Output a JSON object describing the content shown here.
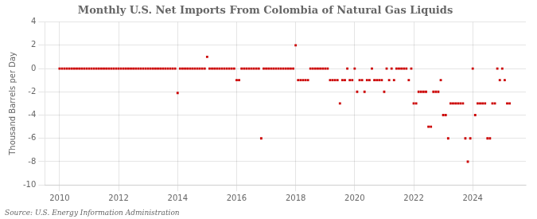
{
  "chart_data": {
    "type": "scatter",
    "title": "Monthly U.S. Net Imports From Colombia of Natural Gas Liquids",
    "ylabel": "Thousand Barrels per Day",
    "annotations": [
      "Source: U.S. Energy Information Administration"
    ],
    "xlim": [
      2009.5,
      2025.8
    ],
    "xticks": [
      2010,
      2012,
      2014,
      2016,
      2018,
      2020,
      2022,
      2024
    ],
    "ylim": [
      -10,
      4
    ],
    "yticks": [
      -10,
      -8,
      -6,
      -4,
      -2,
      0,
      2,
      4
    ],
    "grid": true,
    "color": "#cc0000",
    "marker": "square",
    "x": [
      2010.0,
      2010.083,
      2010.167,
      2010.25,
      2010.333,
      2010.417,
      2010.5,
      2010.583,
      2010.667,
      2010.75,
      2010.833,
      2010.917,
      2011.0,
      2011.083,
      2011.167,
      2011.25,
      2011.333,
      2011.417,
      2011.5,
      2011.583,
      2011.667,
      2011.75,
      2011.833,
      2011.917,
      2012.0,
      2012.083,
      2012.167,
      2012.25,
      2012.333,
      2012.417,
      2012.5,
      2012.583,
      2012.667,
      2012.75,
      2012.833,
      2012.917,
      2013.0,
      2013.083,
      2013.167,
      2013.25,
      2013.333,
      2013.417,
      2013.5,
      2013.583,
      2013.667,
      2013.75,
      2013.833,
      2013.917,
      2014.0,
      2014.083,
      2014.167,
      2014.25,
      2014.333,
      2014.417,
      2014.5,
      2014.583,
      2014.667,
      2014.75,
      2014.833,
      2014.917,
      2015.0,
      2015.083,
      2015.167,
      2015.25,
      2015.333,
      2015.417,
      2015.5,
      2015.583,
      2015.667,
      2015.75,
      2015.833,
      2015.917,
      2016.0,
      2016.083,
      2016.167,
      2016.25,
      2016.333,
      2016.417,
      2016.5,
      2016.583,
      2016.667,
      2016.75,
      2016.833,
      2016.917,
      2017.0,
      2017.083,
      2017.167,
      2017.25,
      2017.333,
      2017.417,
      2017.5,
      2017.583,
      2017.667,
      2017.75,
      2017.833,
      2017.917,
      2018.0,
      2018.083,
      2018.167,
      2018.25,
      2018.333,
      2018.417,
      2018.5,
      2018.583,
      2018.667,
      2018.75,
      2018.833,
      2018.917,
      2019.0,
      2019.083,
      2019.167,
      2019.25,
      2019.333,
      2019.417,
      2019.5,
      2019.583,
      2019.667,
      2019.75,
      2019.833,
      2019.917,
      2020.0,
      2020.083,
      2020.167,
      2020.25,
      2020.333,
      2020.417,
      2020.5,
      2020.583,
      2020.667,
      2020.75,
      2020.833,
      2020.917,
      2021.0,
      2021.083,
      2021.167,
      2021.25,
      2021.333,
      2021.417,
      2021.5,
      2021.583,
      2021.667,
      2021.75,
      2021.833,
      2021.917,
      2022.0,
      2022.083,
      2022.167,
      2022.25,
      2022.333,
      2022.417,
      2022.5,
      2022.583,
      2022.667,
      2022.75,
      2022.833,
      2022.917,
      2023.0,
      2023.083,
      2023.167,
      2023.25,
      2023.333,
      2023.417,
      2023.5,
      2023.583,
      2023.667,
      2023.75,
      2023.833,
      2023.917,
      2024.0,
      2024.083,
      2024.167,
      2024.25,
      2024.333,
      2024.417,
      2024.5,
      2024.583,
      2024.667,
      2024.75,
      2024.833,
      2024.917,
      2025.0,
      2025.083,
      2025.167,
      2025.25
    ],
    "values": [
      0,
      0,
      0,
      0,
      0,
      0,
      0,
      0,
      0,
      0,
      0,
      0,
      0,
      0,
      0,
      0,
      0,
      0,
      0,
      0,
      0,
      0,
      0,
      0,
      0,
      0,
      0,
      0,
      0,
      0,
      0,
      0,
      0,
      0,
      0,
      0,
      0,
      0,
      0,
      0,
      0,
      0,
      0,
      0,
      0,
      0,
      0,
      0,
      -2.1,
      0,
      0,
      0,
      0,
      0,
      0,
      0,
      0,
      0,
      0,
      0,
      1.0,
      0,
      0,
      0,
      0,
      0,
      0,
      0,
      0,
      0,
      0,
      0,
      -1.0,
      -1.0,
      0,
      0,
      0,
      0,
      0,
      0,
      0,
      0,
      -6.0,
      0,
      0,
      0,
      0,
      0,
      0,
      0,
      0,
      0,
      0,
      0,
      0,
      0,
      2.0,
      -1.0,
      -1.0,
      -1.0,
      -1.0,
      -1.0,
      0,
      0,
      0,
      0,
      0,
      0,
      0,
      0,
      -1.0,
      -1.0,
      -1.0,
      -1.0,
      -3.0,
      -1.0,
      -1.0,
      0,
      -1.0,
      -1.0,
      0,
      -2.0,
      -1.0,
      -1.0,
      -2.0,
      -1.0,
      -1.0,
      0,
      -1.0,
      -1.0,
      -1.0,
      -1.0,
      -2.0,
      0,
      -1.0,
      0,
      -1.0,
      0,
      0,
      0,
      0,
      0,
      -1.0,
      0,
      -3.0,
      -3.0,
      -2.0,
      -2.0,
      -2.0,
      -2.0,
      -5.0,
      -5.0,
      -2.0,
      -2.0,
      -2.0,
      -1.0,
      -4.0,
      -4.0,
      -6.0,
      -3.0,
      -3.0,
      -3.0,
      -3.0,
      -3.0,
      -3.0,
      -6.0,
      -8.0,
      -6.0,
      0,
      -4.0,
      -3.0,
      -3.0,
      -3.0,
      -3.0,
      -6.0,
      -6.0,
      -3.0,
      -3.0,
      0,
      -1.0,
      0,
      -1.0,
      -3.0,
      -3.0
    ]
  }
}
